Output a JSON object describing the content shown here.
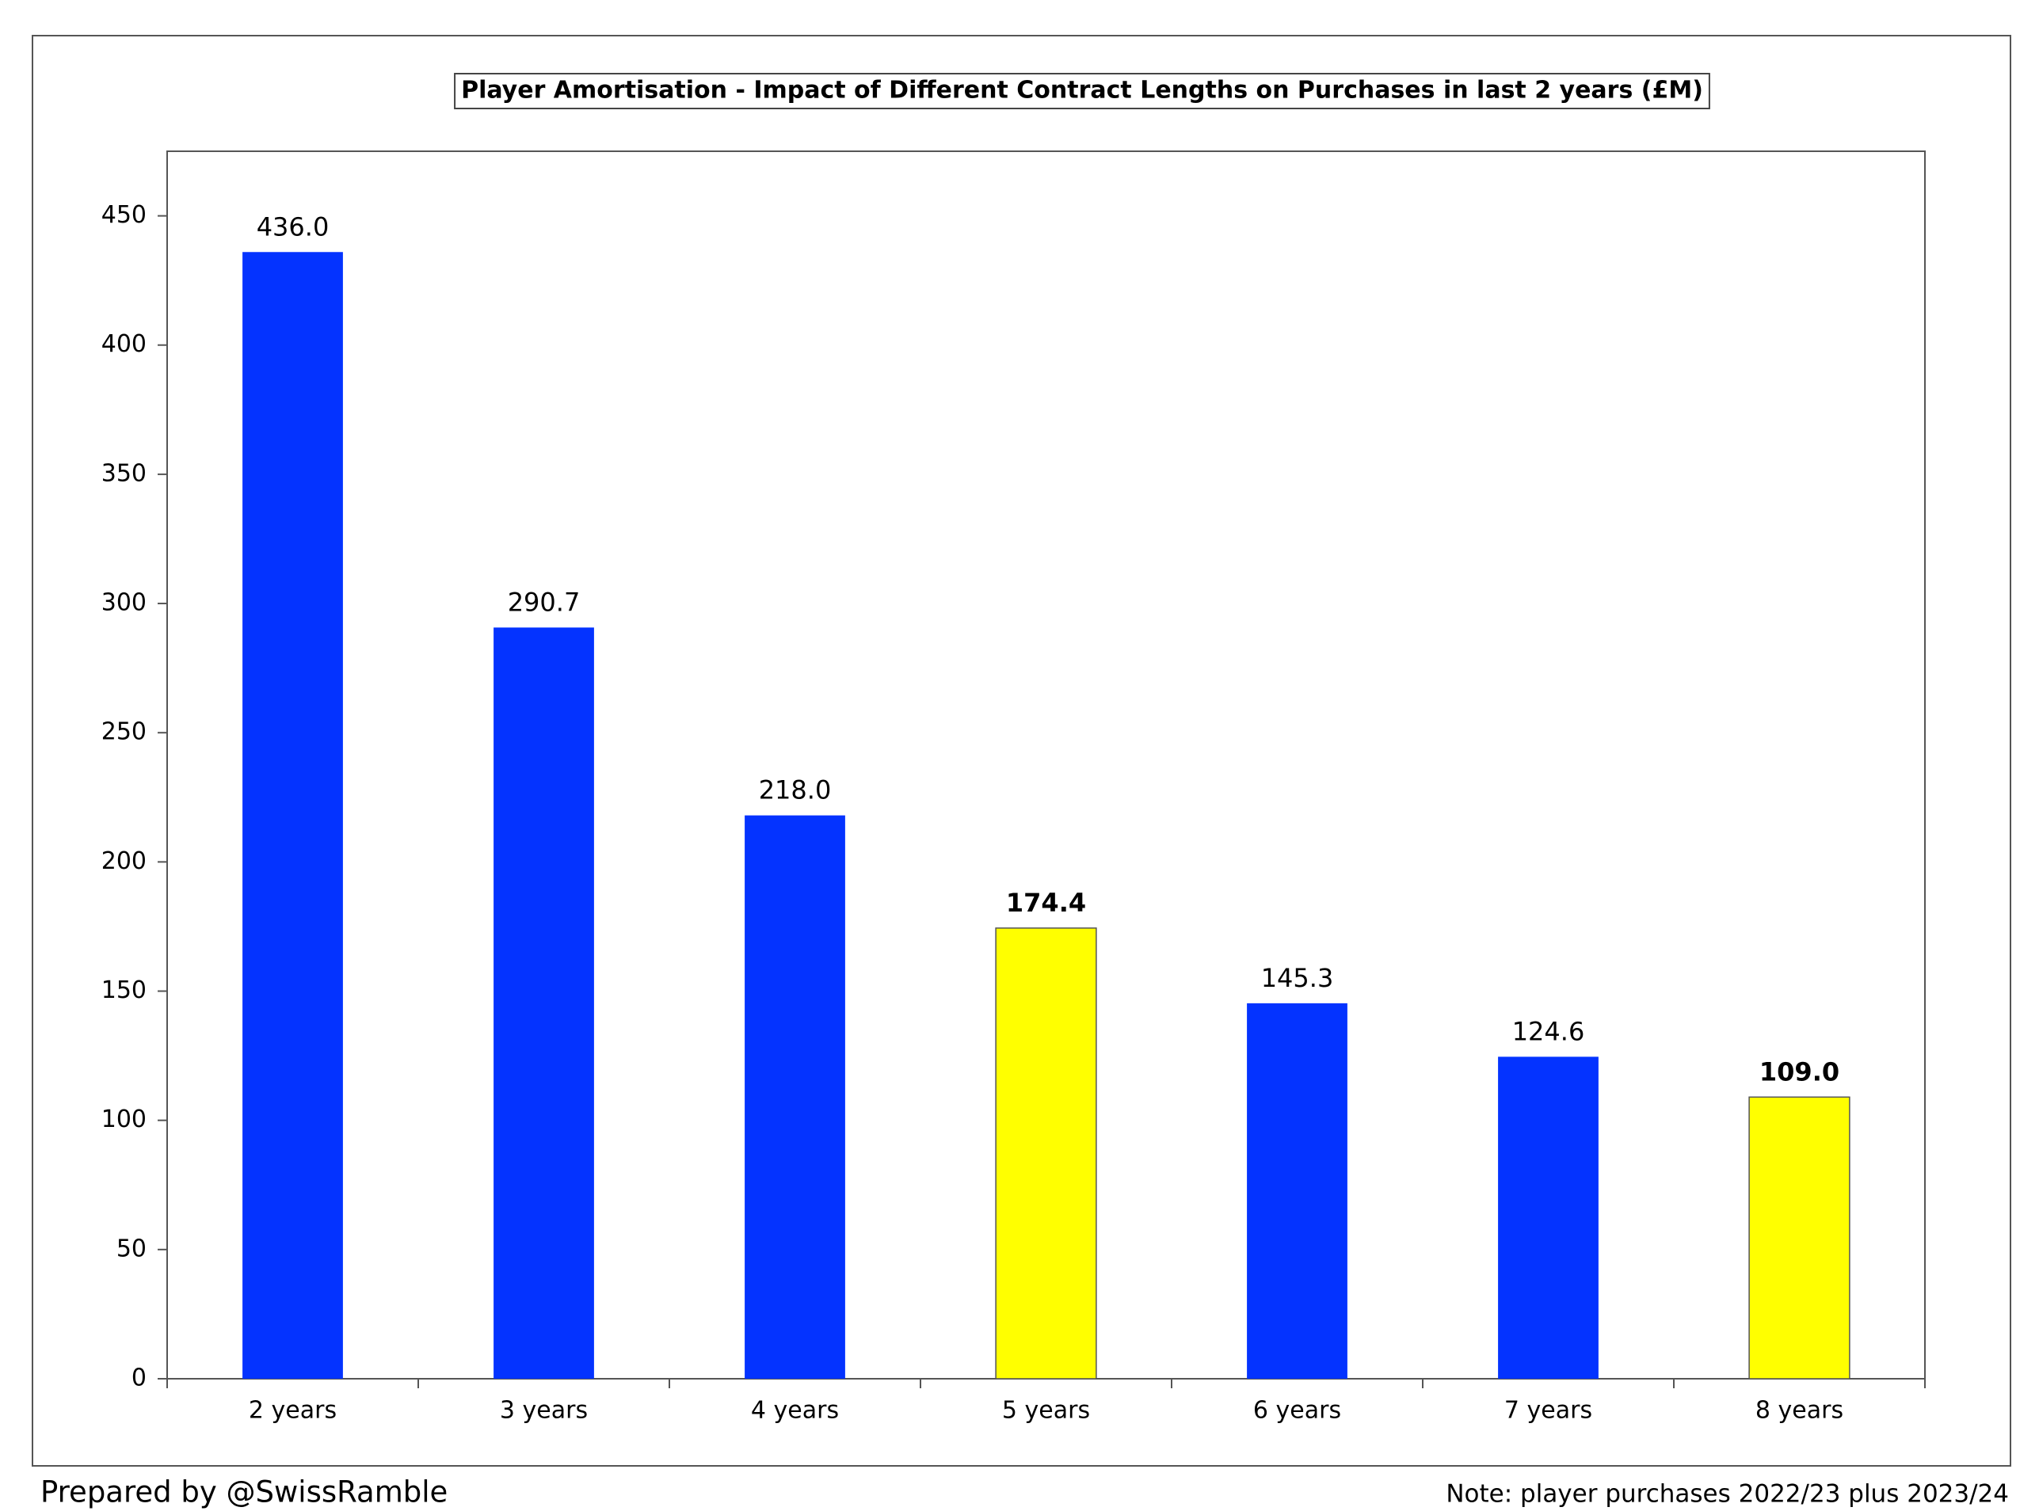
{
  "chart_data": {
    "type": "bar",
    "title": "Player Amortisation - Impact of Different Contract Lengths on Purchases in last 2 years (£M)",
    "categories": [
      "2 years",
      "3 years",
      "4 years",
      "5 years",
      "6 years",
      "7 years",
      "8 years"
    ],
    "values": [
      436,
      290.7,
      218,
      174.4,
      145.3,
      124.6,
      109
    ],
    "value_labels": [
      "436.0",
      "290.7",
      "218.0",
      "174.4",
      "145.3",
      "124.6",
      "109.0"
    ],
    "colors": [
      "#0433ff",
      "#0433ff",
      "#0433ff",
      "#ffff00",
      "#0433ff",
      "#0433ff",
      "#ffff00"
    ],
    "ylim": [
      0,
      475
    ],
    "yticks": [
      0,
      50,
      100,
      150,
      200,
      250,
      300,
      350,
      400,
      450
    ],
    "grid": false,
    "footer_left": "Prepared by @SwissRamble",
    "footer_right": "Note: player purchases 2022/23 plus 2023/24"
  }
}
